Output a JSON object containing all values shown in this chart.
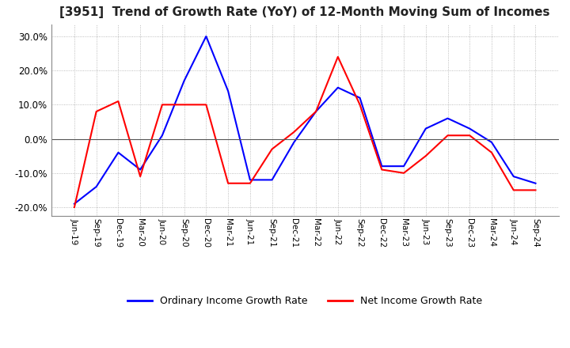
{
  "title": "[3951]  Trend of Growth Rate (YoY) of 12-Month Moving Sum of Incomes",
  "title_fontsize": 11,
  "ylim": [
    -0.225,
    0.335
  ],
  "yticks": [
    -0.2,
    -0.1,
    0.0,
    0.1,
    0.2,
    0.3
  ],
  "background_color": "#ffffff",
  "grid_color": "#aaaaaa",
  "legend_labels": [
    "Ordinary Income Growth Rate",
    "Net Income Growth Rate"
  ],
  "legend_colors": [
    "#0000ff",
    "#ff0000"
  ],
  "x_labels": [
    "Jun-19",
    "Sep-19",
    "Dec-19",
    "Mar-20",
    "Jun-20",
    "Sep-20",
    "Dec-20",
    "Mar-21",
    "Jun-21",
    "Sep-21",
    "Dec-21",
    "Mar-22",
    "Jun-22",
    "Sep-22",
    "Dec-22",
    "Mar-23",
    "Jun-23",
    "Sep-23",
    "Dec-23",
    "Mar-24",
    "Jun-24",
    "Sep-24"
  ],
  "ordinary_income": [
    -0.19,
    -0.14,
    -0.04,
    -0.09,
    0.01,
    0.17,
    0.3,
    0.14,
    -0.12,
    -0.12,
    -0.01,
    0.08,
    0.15,
    0.12,
    -0.08,
    -0.08,
    0.03,
    0.06,
    0.03,
    -0.01,
    -0.11,
    -0.13
  ],
  "net_income": [
    -0.2,
    0.08,
    0.11,
    -0.11,
    0.1,
    0.1,
    0.1,
    -0.13,
    -0.13,
    -0.03,
    0.02,
    0.08,
    0.24,
    0.1,
    -0.09,
    -0.1,
    -0.05,
    0.01,
    0.01,
    -0.04,
    -0.15,
    -0.15
  ]
}
